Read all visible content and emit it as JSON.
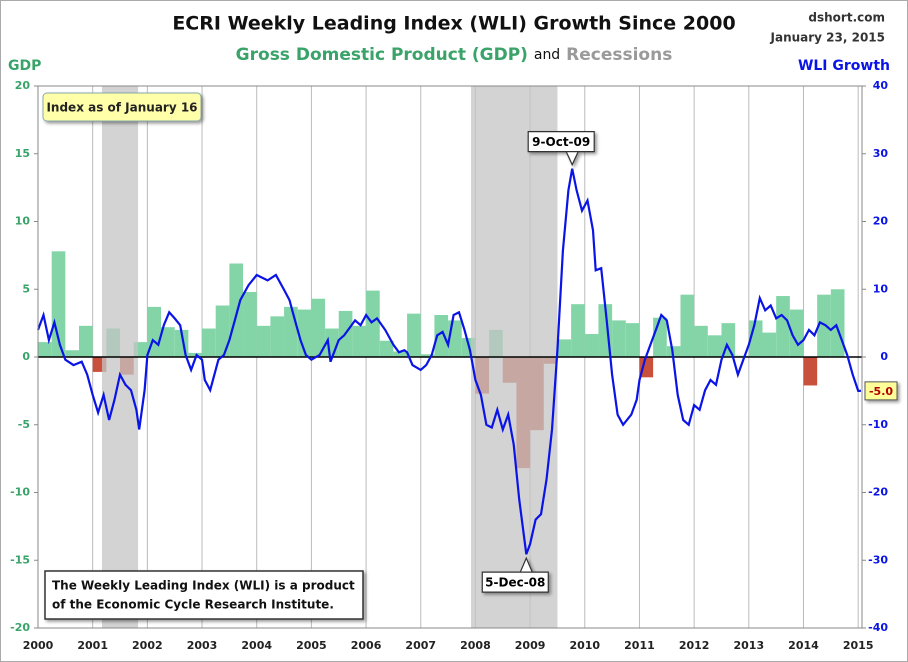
{
  "chart_data": {
    "type": "combo",
    "title": "ECRI Weekly Leading Index (WLI) Growth Since 2000",
    "subtitle_joiner": "and",
    "recession_label": "Recessions",
    "source": "dshort.com",
    "date": "January 23, 2015",
    "y_label": "GDP",
    "note": "Index as of January 16",
    "footnote": [
      "The Weekly Leading Index (WLI) is a product",
      "of the Economic Cycle Research Institute."
    ],
    "annotations": [
      "9-Oct-09",
      "5-Dec-08"
    ],
    "grid": "x",
    "xlim": [
      2000,
      2015.07
    ],
    "xticks": [
      2000,
      2001,
      2002,
      2003,
      2004,
      2005,
      2006,
      2007,
      2008,
      2009,
      2010,
      2011,
      2012,
      2013,
      2014,
      2015
    ],
    "ylim": [
      -20,
      20
    ],
    "yticks": [
      -20,
      -15,
      -10,
      -5,
      0,
      5,
      10,
      15,
      20
    ],
    "y2lim": [
      -40,
      40
    ],
    "y2ticks": [
      -40,
      -30,
      -20,
      -10,
      0,
      10,
      20,
      30,
      40
    ],
    "recessions": [
      {
        "start": 2001.17,
        "end": 2001.83
      },
      {
        "start": 2007.92,
        "end": 2009.5
      }
    ],
    "recession_color": "#c4c4c4",
    "series": [
      {
        "name": "Gross Domestic Product (GDP)",
        "type": "bar",
        "color": "#83d5a8",
        "negative_color": "#c9503a",
        "label_color": "#3aa36a",
        "x": [
          2000,
          2000.25,
          2000.5,
          2000.75,
          2001,
          2001.25,
          2001.5,
          2001.75,
          2002,
          2002.25,
          2002.5,
          2002.75,
          2003,
          2003.25,
          2003.5,
          2003.75,
          2004,
          2004.25,
          2004.5,
          2004.75,
          2005,
          2005.25,
          2005.5,
          2005.75,
          2006,
          2006.25,
          2006.5,
          2006.75,
          2007,
          2007.25,
          2007.5,
          2007.75,
          2008,
          2008.25,
          2008.5,
          2008.75,
          2009,
          2009.25,
          2009.5,
          2009.75,
          2010,
          2010.25,
          2010.5,
          2010.75,
          2011,
          2011.25,
          2011.5,
          2011.75,
          2012,
          2012.25,
          2012.5,
          2012.75,
          2013,
          2013.25,
          2013.5,
          2013.75,
          2014,
          2014.25,
          2014.5
        ],
        "values": [
          1.1,
          7.8,
          0.5,
          2.3,
          -1.1,
          2.1,
          -1.3,
          1.1,
          3.7,
          2.2,
          2.0,
          0.3,
          2.1,
          3.8,
          6.9,
          4.8,
          2.3,
          3.0,
          3.7,
          3.5,
          4.3,
          2.1,
          3.4,
          2.3,
          4.9,
          1.2,
          0.4,
          3.2,
          0.2,
          3.1,
          2.7,
          1.4,
          -2.7,
          2.0,
          -1.9,
          -8.2,
          -5.4,
          -0.5,
          1.3,
          3.9,
          1.7,
          3.9,
          2.7,
          2.5,
          -1.5,
          2.9,
          0.8,
          4.6,
          2.3,
          1.6,
          2.5,
          0.1,
          2.7,
          1.8,
          4.5,
          3.5,
          -2.1,
          4.6,
          5.0
        ]
      },
      {
        "name": "WLI Growth",
        "type": "line",
        "axis": "y2",
        "color": "#0a14e6",
        "last_value_label": "-5.0",
        "x": [
          2000.0,
          2000.1,
          2000.2,
          2000.3,
          2000.4,
          2000.5,
          2000.65,
          2000.8,
          2000.9,
          2001.0,
          2001.1,
          2001.2,
          2001.3,
          2001.4,
          2001.5,
          2001.6,
          2001.7,
          2001.8,
          2001.85,
          2001.95,
          2002.0,
          2002.1,
          2002.2,
          2002.3,
          2002.4,
          2002.5,
          2002.6,
          2002.7,
          2002.8,
          2002.9,
          2003.0,
          2003.05,
          2003.15,
          2003.3,
          2003.4,
          2003.5,
          2003.6,
          2003.7,
          2003.85,
          2004.0,
          2004.2,
          2004.35,
          2004.5,
          2004.6,
          2004.7,
          2004.8,
          2004.9,
          2005.0,
          2005.15,
          2005.3,
          2005.35,
          2005.5,
          2005.6,
          2005.8,
          2005.9,
          2006.0,
          2006.1,
          2006.2,
          2006.35,
          2006.5,
          2006.6,
          2006.7,
          2006.75,
          2006.85,
          2007.0,
          2007.1,
          2007.2,
          2007.3,
          2007.4,
          2007.5,
          2007.6,
          2007.7,
          2007.8,
          2007.9,
          2008.0,
          2008.1,
          2008.2,
          2008.3,
          2008.4,
          2008.5,
          2008.6,
          2008.7,
          2008.8,
          2008.93,
          2009.0,
          2009.1,
          2009.2,
          2009.3,
          2009.4,
          2009.5,
          2009.6,
          2009.7,
          2009.77,
          2009.85,
          2009.95,
          2010.05,
          2010.15,
          2010.2,
          2010.3,
          2010.4,
          2010.5,
          2010.6,
          2010.7,
          2010.85,
          2010.95,
          2011.0,
          2011.1,
          2011.2,
          2011.3,
          2011.4,
          2011.5,
          2011.6,
          2011.7,
          2011.8,
          2011.9,
          2012.0,
          2012.1,
          2012.2,
          2012.3,
          2012.4,
          2012.5,
          2012.6,
          2012.7,
          2012.8,
          2012.9,
          2013.0,
          2013.1,
          2013.2,
          2013.3,
          2013.4,
          2013.5,
          2013.6,
          2013.7,
          2013.8,
          2013.9,
          2014.0,
          2014.1,
          2014.2,
          2014.3,
          2014.4,
          2014.5,
          2014.6,
          2014.7,
          2014.8,
          2014.9,
          2015.0,
          2015.05
        ],
        "values": [
          4.0,
          6.2,
          2.5,
          5.1,
          1.8,
          -0.4,
          -1.2,
          -0.7,
          -2.6,
          -5.6,
          -8.2,
          -5.6,
          -9.3,
          -6.3,
          -2.6,
          -4.1,
          -4.9,
          -7.8,
          -10.7,
          -4.9,
          0.3,
          2.5,
          1.8,
          4.7,
          6.6,
          5.7,
          4.7,
          0.3,
          -1.9,
          0.3,
          -0.4,
          -3.4,
          -4.9,
          -0.4,
          0.3,
          2.5,
          5.4,
          8.4,
          10.6,
          12.1,
          11.3,
          12.1,
          9.9,
          8.4,
          5.4,
          2.5,
          0.3,
          -0.4,
          0.3,
          2.5,
          -0.7,
          2.5,
          3.2,
          5.4,
          4.7,
          6.2,
          5.1,
          5.7,
          4.0,
          1.8,
          0.7,
          1.0,
          0.7,
          -1.2,
          -1.9,
          -1.2,
          0.3,
          3.2,
          3.7,
          1.8,
          6.2,
          6.6,
          4.0,
          1.0,
          -3.4,
          -5.6,
          -10.0,
          -10.4,
          -7.8,
          -10.7,
          -8.5,
          -12.9,
          -21.0,
          -29.1,
          -27.6,
          -24.0,
          -23.2,
          -18.1,
          -10.7,
          1.0,
          15.7,
          24.6,
          27.8,
          24.6,
          21.6,
          23.1,
          18.7,
          12.8,
          13.1,
          5.4,
          -2.6,
          -8.5,
          -10.0,
          -8.5,
          -6.3,
          -3.4,
          -0.4,
          1.8,
          4.0,
          6.2,
          5.4,
          1.0,
          -5.6,
          -9.3,
          -10.0,
          -7.1,
          -7.8,
          -4.9,
          -3.4,
          -4.1,
          -0.4,
          1.8,
          0.3,
          -2.6,
          -0.4,
          1.8,
          4.7,
          8.7,
          6.9,
          7.6,
          5.7,
          6.2,
          5.4,
          3.2,
          1.8,
          2.5,
          4.0,
          3.2,
          5.1,
          4.7,
          4.0,
          4.7,
          2.5,
          0.3,
          -2.6,
          -5.0,
          -5.0
        ]
      }
    ]
  }
}
